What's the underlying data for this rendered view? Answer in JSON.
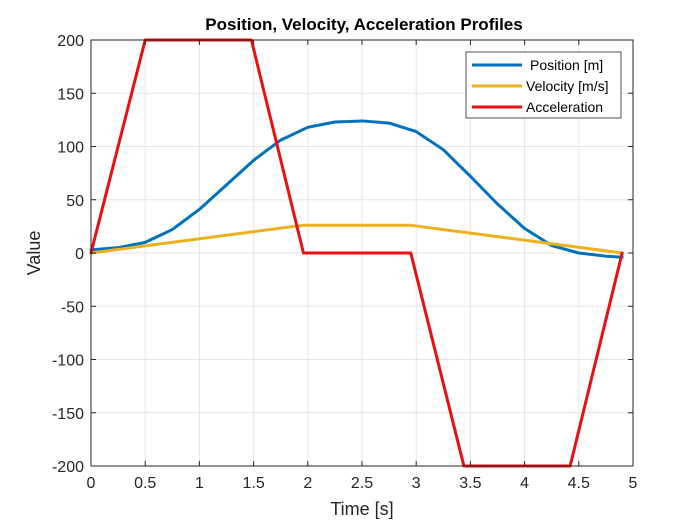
{
  "chart_data": {
    "type": "line",
    "title": "Position, Velocity, Acceleration Profiles",
    "xlabel": "Time [s]",
    "ylabel": "Value",
    "xlim": [
      0,
      5
    ],
    "ylim": [
      -200,
      200
    ],
    "xticks": [
      0,
      0.5,
      1,
      1.5,
      2,
      2.5,
      3,
      3.5,
      4,
      4.5,
      5
    ],
    "yticks": [
      -200,
      -150,
      -100,
      -50,
      0,
      50,
      100,
      150,
      200
    ],
    "xtick_labels": [
      "0",
      "0.5",
      "1",
      "1.5",
      "2",
      "2.5",
      "3",
      "3.5",
      "4",
      "4.5",
      "5"
    ],
    "ytick_labels": [
      "-200",
      "-150",
      "-100",
      "-50",
      "0",
      "50",
      "100",
      "150",
      "200"
    ],
    "grid": true,
    "legend_position": "top-right",
    "series": [
      {
        "name": "Position [m]",
        "color": "#0072BD",
        "x": [
          0,
          0.25,
          0.5,
          0.75,
          1.0,
          1.25,
          1.5,
          1.75,
          2.0,
          2.25,
          2.5,
          2.75,
          3.0,
          3.25,
          3.5,
          3.75,
          4.0,
          4.25,
          4.5,
          4.75,
          4.9
        ],
        "values": [
          3,
          5,
          10,
          22,
          41,
          64,
          87,
          106,
          118,
          123,
          124,
          122,
          114,
          97,
          72,
          46,
          23,
          7,
          0,
          -3,
          -4
        ]
      },
      {
        "name": "Velocity [m/s]",
        "color": "#EDB120",
        "x": [
          0,
          1.95,
          2.95,
          4.9
        ],
        "values": [
          0,
          26,
          26,
          0
        ]
      },
      {
        "name": "Acceleration",
        "color": "#E81010",
        "x": [
          0,
          0.5,
          1.48,
          1.96,
          2.95,
          3.44,
          4.42,
          4.9
        ],
        "values": [
          0,
          200,
          200,
          0,
          0,
          -200,
          -200,
          0
        ]
      }
    ]
  }
}
